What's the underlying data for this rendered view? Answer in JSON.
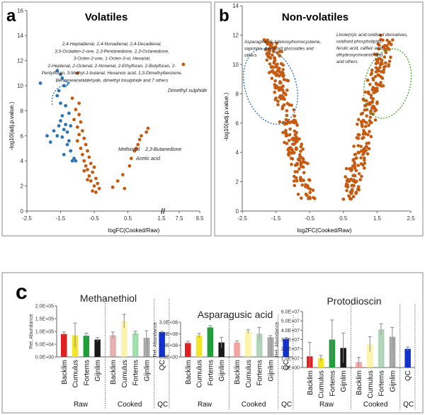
{
  "panels": {
    "a": {
      "letter": "a",
      "title": "Volatiles"
    },
    "b": {
      "letter": "b",
      "title": "Non-volatiles"
    },
    "c": {
      "letter": "c"
    }
  },
  "group_labels": {
    "raw": "Raw",
    "cooked": "Cooked",
    "qc": "QC"
  },
  "colors": {
    "orange": "#c55a11",
    "blue": "#2e75b6",
    "red": "#e02020",
    "yellow": "#f2e42a",
    "green": "#1f9e3a",
    "black": "#1a1a1a",
    "qc_blue": "#1030d0",
    "ellipse_blue": "#2e75b6",
    "ellipse_green": "#4ea72e"
  },
  "chart_data": [
    {
      "type": "scatter",
      "title": "Volatiles",
      "xlabel": "logFC(Cooked/Raw)",
      "ylabel": "-log10(adj.p.value.)",
      "xlim": [
        -2.5,
        9.5
      ],
      "ylim": [
        0,
        16
      ],
      "x_ticks": [
        "-2.5",
        "-1.5",
        "-0.5",
        "0.5",
        "1.5",
        "7.5",
        "9.5"
      ],
      "y_ticks": [
        "0",
        "2",
        "4",
        "6",
        "8",
        "10",
        "12",
        "14",
        "16"
      ],
      "axis_break": "//",
      "annotations": [
        {
          "text": "2,4-Heptadienal, 2,4-Nonadienal, 2,4-Decadienal,",
          "group": "list"
        },
        {
          "text": "3,5-Octadien-2-one, 2,3-Pentanedione, 2,3-Octanedione,",
          "group": "list"
        },
        {
          "text": "3-Octen-2-one, 1-Octen-3-ol, Hexanal,",
          "group": "list"
        },
        {
          "text": "2-Heptenal, 2-Octenal, 2-Nonenal, 2-Ethylfuran, 2-Butylfuran, 2-",
          "group": "list"
        },
        {
          "text": "Pentylfuran, 3-Methyl-1-butanal, Hexanoic acid, 1,3-Dimethylbenzene,",
          "group": "list"
        },
        {
          "text": "Benzeneacetaldehyde, dimethyl trisulphide and 7 others",
          "group": "list"
        },
        {
          "text": "Dimethyl sulphide",
          "group": "point"
        },
        {
          "text": "Methional",
          "group": "point"
        },
        {
          "text": "2,3-Butanedione",
          "group": "point"
        },
        {
          "text": "Acetic acid",
          "group": "point"
        }
      ],
      "series": [
        {
          "name": "",
          "color": "blue",
          "points": [
            [
              -2.1,
              10.2
            ],
            [
              -1.6,
              11.2
            ],
            [
              -1.5,
              10.9
            ],
            [
              -1.45,
              10.6
            ],
            [
              -1.4,
              10.0
            ],
            [
              -1.55,
              9.6
            ],
            [
              -1.6,
              9.2
            ],
            [
              -1.5,
              8.6
            ],
            [
              -1.35,
              8.4
            ],
            [
              -1.25,
              7.8
            ],
            [
              -1.45,
              7.6
            ],
            [
              -1.5,
              7.2
            ],
            [
              -1.35,
              6.9
            ],
            [
              -1.2,
              6.8
            ],
            [
              -1.55,
              6.8
            ],
            [
              -1.4,
              6.5
            ],
            [
              -1.3,
              6.3
            ],
            [
              -1.7,
              6.4
            ],
            [
              -1.6,
              6.0
            ],
            [
              -1.45,
              5.9
            ],
            [
              -1.25,
              5.6
            ],
            [
              -1.8,
              5.5
            ],
            [
              -1.3,
              5.3
            ],
            [
              -1.2,
              4.8
            ],
            [
              -1.4,
              4.5
            ],
            [
              -1.9,
              6.0
            ],
            [
              -1.05,
              4.0
            ],
            [
              -1.1,
              4.2
            ],
            [
              -1.15,
              4.0
            ]
          ]
        },
        {
          "name": "",
          "color": "orange",
          "points": [
            [
              -1.0,
              11.0
            ],
            [
              -1.15,
              9.0
            ],
            [
              -0.95,
              8.6
            ],
            [
              -1.05,
              8.1
            ],
            [
              -0.95,
              7.7
            ],
            [
              -1.1,
              7.3
            ],
            [
              -0.9,
              7.1
            ],
            [
              -1.0,
              6.7
            ],
            [
              -0.85,
              6.4
            ],
            [
              -0.95,
              6.1
            ],
            [
              -0.8,
              5.8
            ],
            [
              -1.0,
              5.6
            ],
            [
              -0.75,
              5.3
            ],
            [
              -0.9,
              5.0
            ],
            [
              -0.7,
              4.8
            ],
            [
              -0.85,
              4.5
            ],
            [
              -0.65,
              4.3
            ],
            [
              -0.8,
              4.0
            ],
            [
              -0.6,
              3.8
            ],
            [
              -0.75,
              3.6
            ],
            [
              -0.5,
              3.5
            ],
            [
              -0.7,
              3.3
            ],
            [
              -0.55,
              3.1
            ],
            [
              -0.65,
              2.8
            ],
            [
              -0.45,
              2.6
            ],
            [
              -0.6,
              2.4
            ],
            [
              -0.4,
              2.2
            ],
            [
              -0.5,
              2.0
            ],
            [
              -0.35,
              1.8
            ],
            [
              -0.55,
              1.6
            ],
            [
              -0.45,
              1.5
            ],
            [
              -0.7,
              2.5
            ],
            [
              -0.8,
              3.2
            ],
            [
              0.05,
              1.9
            ],
            [
              0.2,
              2.4
            ],
            [
              0.35,
              2.9
            ],
            [
              0.4,
              1.8
            ],
            [
              0.55,
              3.6
            ],
            [
              0.6,
              4.2
            ],
            [
              0.7,
              4.8
            ],
            [
              0.8,
              5.3
            ],
            [
              0.85,
              5.7
            ],
            [
              0.75,
              5.0
            ],
            [
              0.9,
              6.0
            ],
            [
              1.05,
              6.3
            ],
            [
              1.1,
              6.6
            ],
            [
              7.9,
              11.7
            ]
          ]
        }
      ]
    },
    {
      "type": "scatter",
      "title": "Non-volatiles",
      "xlabel": "log2FC(Cooked/Raw)",
      "ylabel": "-log10(adj.p.value.)",
      "xlim": [
        -2.5,
        2.5
      ],
      "ylim": [
        0,
        14
      ],
      "x_ticks": [
        "-2.5",
        "-1.5",
        "-0.5",
        "0.5",
        "1.5",
        "2.5"
      ],
      "y_ticks": [
        "0",
        "2",
        "4",
        "6",
        "8",
        "10",
        "12",
        "14"
      ],
      "annotations": [
        {
          "text": "Asparagine, S-Adenosylhomocysteine,",
          "group": "left"
        },
        {
          "text": "saponins, flavonoid glucosides and",
          "group": "left"
        },
        {
          "text": "others",
          "group": "left"
        },
        {
          "text": "Linole(n)ic acid oxidised derivatives,",
          "group": "right"
        },
        {
          "text": "oxidised phospholipids,",
          "group": "right"
        },
        {
          "text": "ferulic acid, caffeic acid,",
          "group": "right"
        },
        {
          "text": "dihydroxycinnamic acid",
          "group": "right"
        },
        {
          "text": "and others",
          "group": "right"
        }
      ],
      "series": [
        {
          "name": "",
          "color": "orange",
          "points": []
        }
      ]
    },
    {
      "type": "bar",
      "title": "Methanethiol",
      "ylabel": "Rel. Abundance",
      "categories": [
        "Backlim",
        "Cumulus",
        "Fortems",
        "Gijnlim",
        "Backlim",
        "Cumulus",
        "Fortems",
        "Gijnlim",
        "QC"
      ],
      "groups": [
        "Raw",
        "Raw",
        "Raw",
        "Raw",
        "Cooked",
        "Cooked",
        "Cooked",
        "Cooked",
        "QC"
      ],
      "values": [
        90000,
        85000,
        83000,
        68000,
        85000,
        140000,
        93000,
        75000,
        97000
      ],
      "errors": [
        8000,
        48000,
        10000,
        8000,
        13000,
        27000,
        8000,
        28000,
        3000
      ],
      "ylim": [
        0,
        200000
      ],
      "y_ticks": [
        "0.0E+00",
        "5.0E+04",
        "1.0E+05",
        "1.5E+05",
        "2.0E+05"
      ]
    },
    {
      "type": "bar",
      "title": "Asparagusic acid",
      "ylabel": "Rel. Abundance",
      "categories": [
        "Backlim",
        "Cumulus",
        "Fortems",
        "Gijnlim",
        "Backlim",
        "Cumulus",
        "Fortems",
        "Gijnlim",
        "QC"
      ],
      "groups": [
        "Raw",
        "Raw",
        "Raw",
        "Raw",
        "Cooked",
        "Cooked",
        "Cooked",
        "Cooked",
        "QC"
      ],
      "values": [
        120000000,
        185000000,
        255000000,
        125000000,
        125000000,
        220000000,
        200000000,
        170000000,
        155000000
      ],
      "errors": [
        15000000,
        18000000,
        15000000,
        45000000,
        15000000,
        17000000,
        55000000,
        15000000,
        12000000
      ],
      "ylim": [
        0,
        300000000
      ],
      "y_ticks": [
        "0.0E+00",
        "1.0E+08",
        "2.0E+08",
        "3.0E+08"
      ]
    },
    {
      "type": "bar",
      "title": "Protodioscin",
      "ylabel": "Rel. Abundance",
      "categories": [
        "Backlim",
        "Cumulus",
        "Fortems",
        "Gijnlim",
        "Backlim",
        "Cumulus",
        "Fortems",
        "Gijnlim",
        "QC"
      ],
      "groups": [
        "Raw",
        "Raw",
        "Raw",
        "Raw",
        "Cooked",
        "Cooked",
        "Cooked",
        "Cooked",
        "QC"
      ],
      "values": [
        12000000,
        10000000,
        30000000,
        21000000,
        6000000,
        25000000,
        41000000,
        33000000,
        20000000
      ],
      "errors": [
        15000000,
        3000000,
        21000000,
        16000000,
        5000000,
        8000000,
        6000000,
        10000000,
        2000000
      ],
      "ylim": [
        0,
        60000000
      ],
      "y_ticks": [
        "0.0E+00",
        "1.0E+07",
        "2.0E+07",
        "3.0E+07",
        "4.0E+07",
        "5.0E+07",
        "6.0E+07"
      ]
    }
  ]
}
